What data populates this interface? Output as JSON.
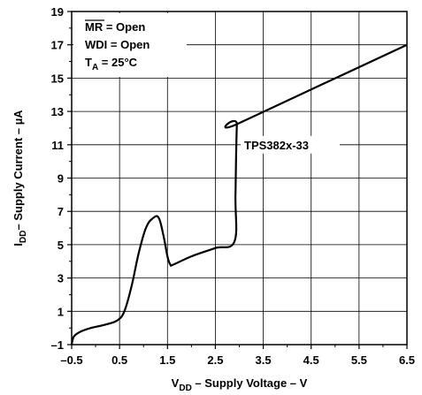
{
  "chart_data": {
    "type": "line",
    "xlabel": "V",
    "xlabel_sub": "DD",
    "xlabel_rest": " – Supply Voltage – V",
    "ylabel": "I",
    "ylabel_sub": "DD",
    "ylabel_rest": "– Supply Current – µA",
    "xlim": [
      -0.5,
      6.5
    ],
    "ylim": [
      -1,
      19
    ],
    "x_ticks": [
      -0.5,
      0.5,
      1.5,
      2.5,
      3.5,
      4.5,
      5.5,
      6.5
    ],
    "x_tick_labels": [
      "–0.5",
      "0.5",
      "1.5",
      "2.5",
      "3.5",
      "4.5",
      "5.5",
      "6.5"
    ],
    "y_ticks": [
      -1,
      1,
      3,
      5,
      7,
      9,
      11,
      13,
      15,
      17,
      19
    ],
    "y_tick_labels": [
      "–1",
      "1",
      "3",
      "5",
      "7",
      "9",
      "11",
      "13",
      "15",
      "17",
      "19"
    ],
    "grid": true,
    "series": [
      {
        "name": "TPS382x-33",
        "x": [
          -0.5,
          -0.45,
          -0.3,
          -0.1,
          0.2,
          0.45,
          0.6,
          0.75,
          0.9,
          1.05,
          1.2,
          1.32,
          1.42,
          1.5,
          1.56,
          1.62,
          2.0,
          2.5,
          2.9,
          2.92,
          2.95,
          3.0,
          6.5
        ],
        "y": [
          -1,
          -0.5,
          -0.2,
          0.0,
          0.2,
          0.45,
          1.0,
          2.5,
          4.5,
          6.0,
          6.6,
          6.6,
          5.5,
          4.3,
          3.8,
          3.8,
          4.3,
          4.8,
          5.2,
          8.0,
          12.2,
          12.3,
          17.0
        ]
      }
    ],
    "annotations": {
      "mr_label": "MR",
      "mr_rest": " = Open",
      "wdi": "WDI = Open",
      "ta_label": "T",
      "ta_sub": "A",
      "ta_rest": " = 25°C",
      "series_label": "TPS382x-33"
    },
    "colors": {
      "line": "#000000",
      "grid": "#000000",
      "background": "#ffffff"
    }
  }
}
